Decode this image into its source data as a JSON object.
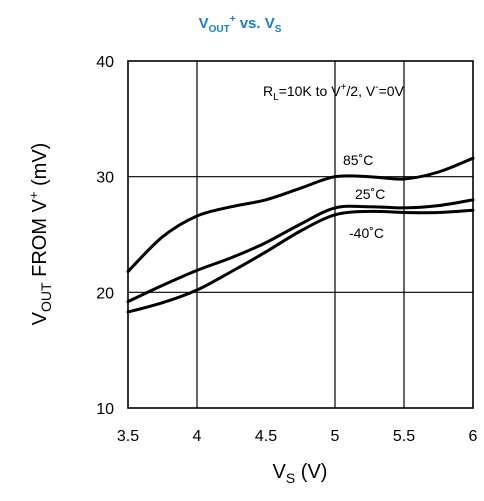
{
  "chart_data": {
    "type": "line",
    "title_main": "V",
    "title_sub1": "OUT",
    "title_sup1": "+",
    "title_mid": " vs. V",
    "title_sub2": "S",
    "xlabel_main": "V",
    "xlabel_sub": "S",
    "xlabel_unit": " (V)",
    "ylabel_main": "V",
    "ylabel_sub": "OUT",
    "ylabel_mid": " FROM V",
    "ylabel_sup": "+",
    "ylabel_unit": "  (mV)",
    "xlim": [
      3.5,
      6
    ],
    "ylim": [
      10,
      40
    ],
    "xticks": [
      "3.5",
      "4",
      "4.5",
      "5",
      "5.5",
      "6"
    ],
    "yticks": [
      "10",
      "20",
      "30",
      "40"
    ],
    "xgrid": [
      4,
      5,
      5.5
    ],
    "ygrid": [
      20,
      30
    ],
    "annotation": {
      "p1": "R",
      "p1_sub": "L",
      "p2": "=10K to V",
      "p2_sup": "+",
      "p3": "/2, V",
      "p3_sup": "-",
      "p4": "=0V"
    },
    "series": [
      {
        "name": "85˚C",
        "x": [
          3.5,
          3.75,
          4.0,
          4.25,
          4.5,
          4.75,
          5.0,
          5.25,
          5.5,
          5.75,
          6.0
        ],
        "y": [
          21.8,
          24.8,
          26.6,
          27.4,
          28.0,
          29.0,
          30.0,
          30.0,
          29.8,
          30.4,
          31.6
        ]
      },
      {
        "name": "25˚C",
        "x": [
          3.5,
          3.75,
          4.0,
          4.25,
          4.5,
          4.75,
          5.0,
          5.25,
          5.5,
          5.75,
          6.0
        ],
        "y": [
          19.2,
          20.6,
          21.9,
          23.0,
          24.3,
          25.9,
          27.3,
          27.4,
          27.3,
          27.5,
          28.0
        ]
      },
      {
        "name": "-40˚C",
        "x": [
          3.5,
          3.75,
          4.0,
          4.25,
          4.5,
          4.75,
          5.0,
          5.25,
          5.5,
          5.75,
          6.0
        ],
        "y": [
          18.3,
          19.1,
          20.2,
          21.8,
          23.5,
          25.3,
          26.7,
          27.0,
          26.9,
          26.9,
          27.1
        ]
      }
    ]
  }
}
